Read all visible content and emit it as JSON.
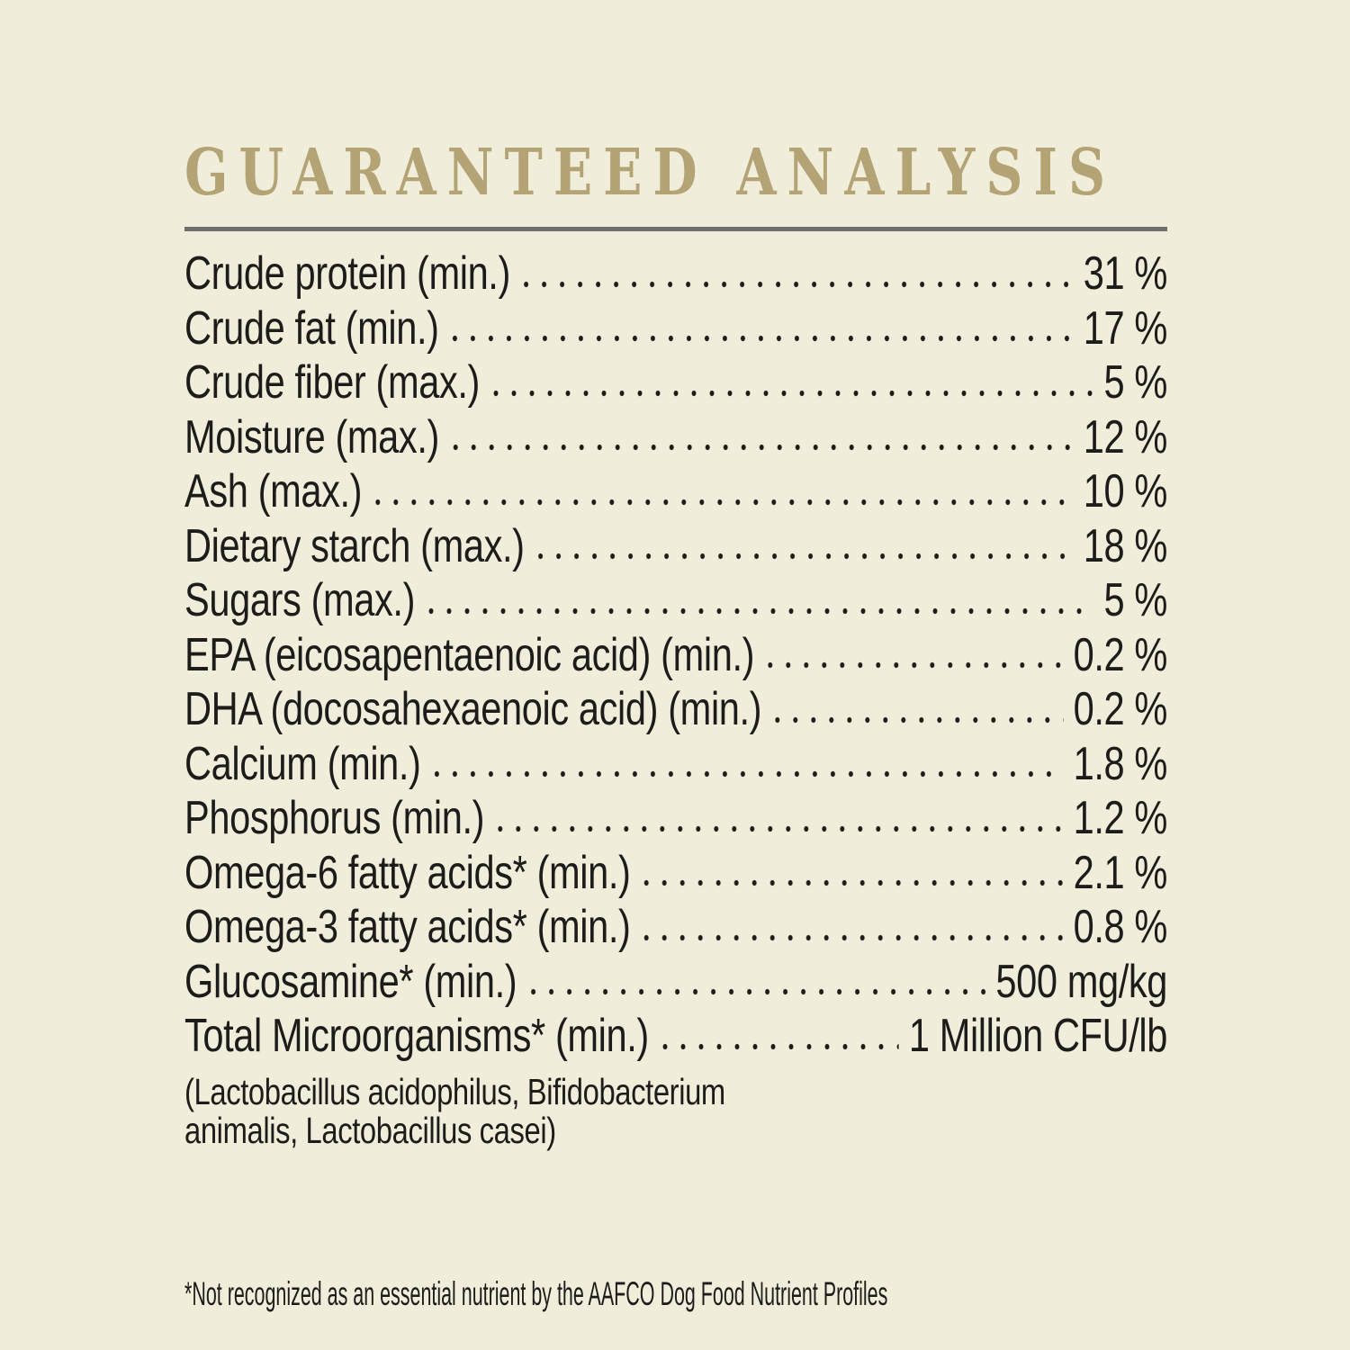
{
  "colors": {
    "background": "#f0eeda",
    "title": "#b3a375",
    "rule": "#6e6e6e",
    "text": "#1d1c1a"
  },
  "label": {
    "title": "GUARANTEED ANALYSIS",
    "rows": [
      {
        "label": "Crude protein (min.)",
        "value": "31 %"
      },
      {
        "label": "Crude fat (min.)",
        "value": "17 %"
      },
      {
        "label": "Crude fiber (max.)",
        "value": "5 %"
      },
      {
        "label": "Moisture (max.)",
        "value": "12 %"
      },
      {
        "label": "Ash (max.)",
        "value": "10 %"
      },
      {
        "label": "Dietary starch (max.)",
        "value": "18 %"
      },
      {
        "label": "Sugars (max.)",
        "value": "5 %"
      },
      {
        "label": "EPA (eicosapentaenoic acid) (min.)",
        "value": "0.2 %"
      },
      {
        "label": "DHA (docosahexaenoic acid) (min.)",
        "value": "0.2 %"
      },
      {
        "label": "Calcium (min.)",
        "value": "1.8 %"
      },
      {
        "label": "Phosphorus (min.)",
        "value": "1.2 %"
      },
      {
        "label": "Omega-6 fatty acids* (min.)",
        "value": "2.1 %"
      },
      {
        "label": "Omega-3 fatty acids* (min.)",
        "value": "0.8 %"
      },
      {
        "label": "Glucosamine* (min.)",
        "value": "500 mg/kg"
      },
      {
        "label": "Total Microorganisms* (min.)",
        "value": "1 Million CFU/lb"
      }
    ],
    "microorganisms_note": "(Lactobacillus acidophilus, Bifidobacterium animalis, Lactobacillus casei)",
    "footnote": "*Not recognized as an essential nutrient by the AAFCO Dog Food Nutrient Profiles"
  }
}
